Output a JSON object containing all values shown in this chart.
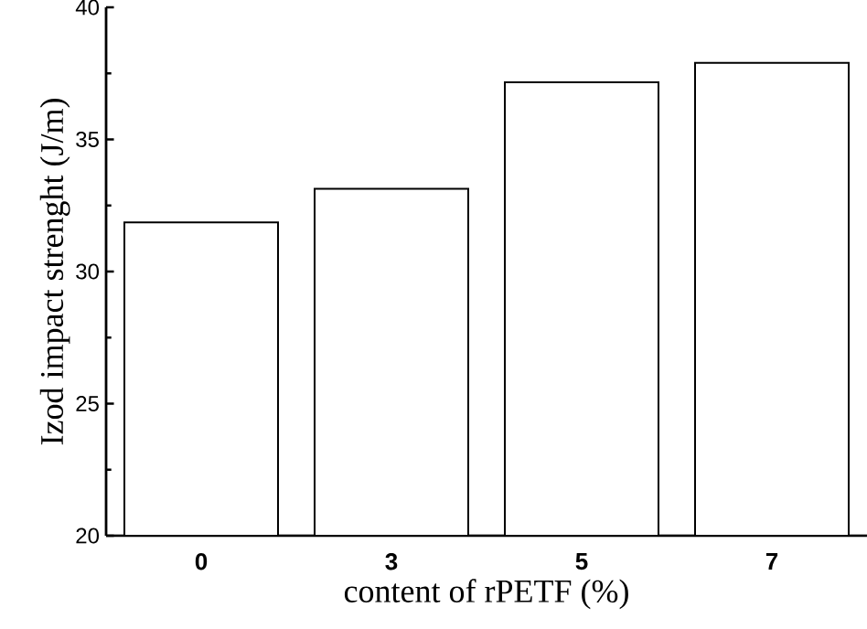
{
  "chart_data": {
    "type": "bar",
    "categories": [
      "0",
      "3",
      "5",
      "7"
    ],
    "values": [
      31.86,
      33.13,
      37.16,
      37.9
    ],
    "color": "#000000",
    "xlabel": "content of rPETF (%)",
    "ylabel": "Izod impact strenght (J/m)",
    "ylim": [
      20,
      40
    ],
    "yticks": [
      20,
      25,
      30,
      35,
      40
    ],
    "grid": false
  }
}
